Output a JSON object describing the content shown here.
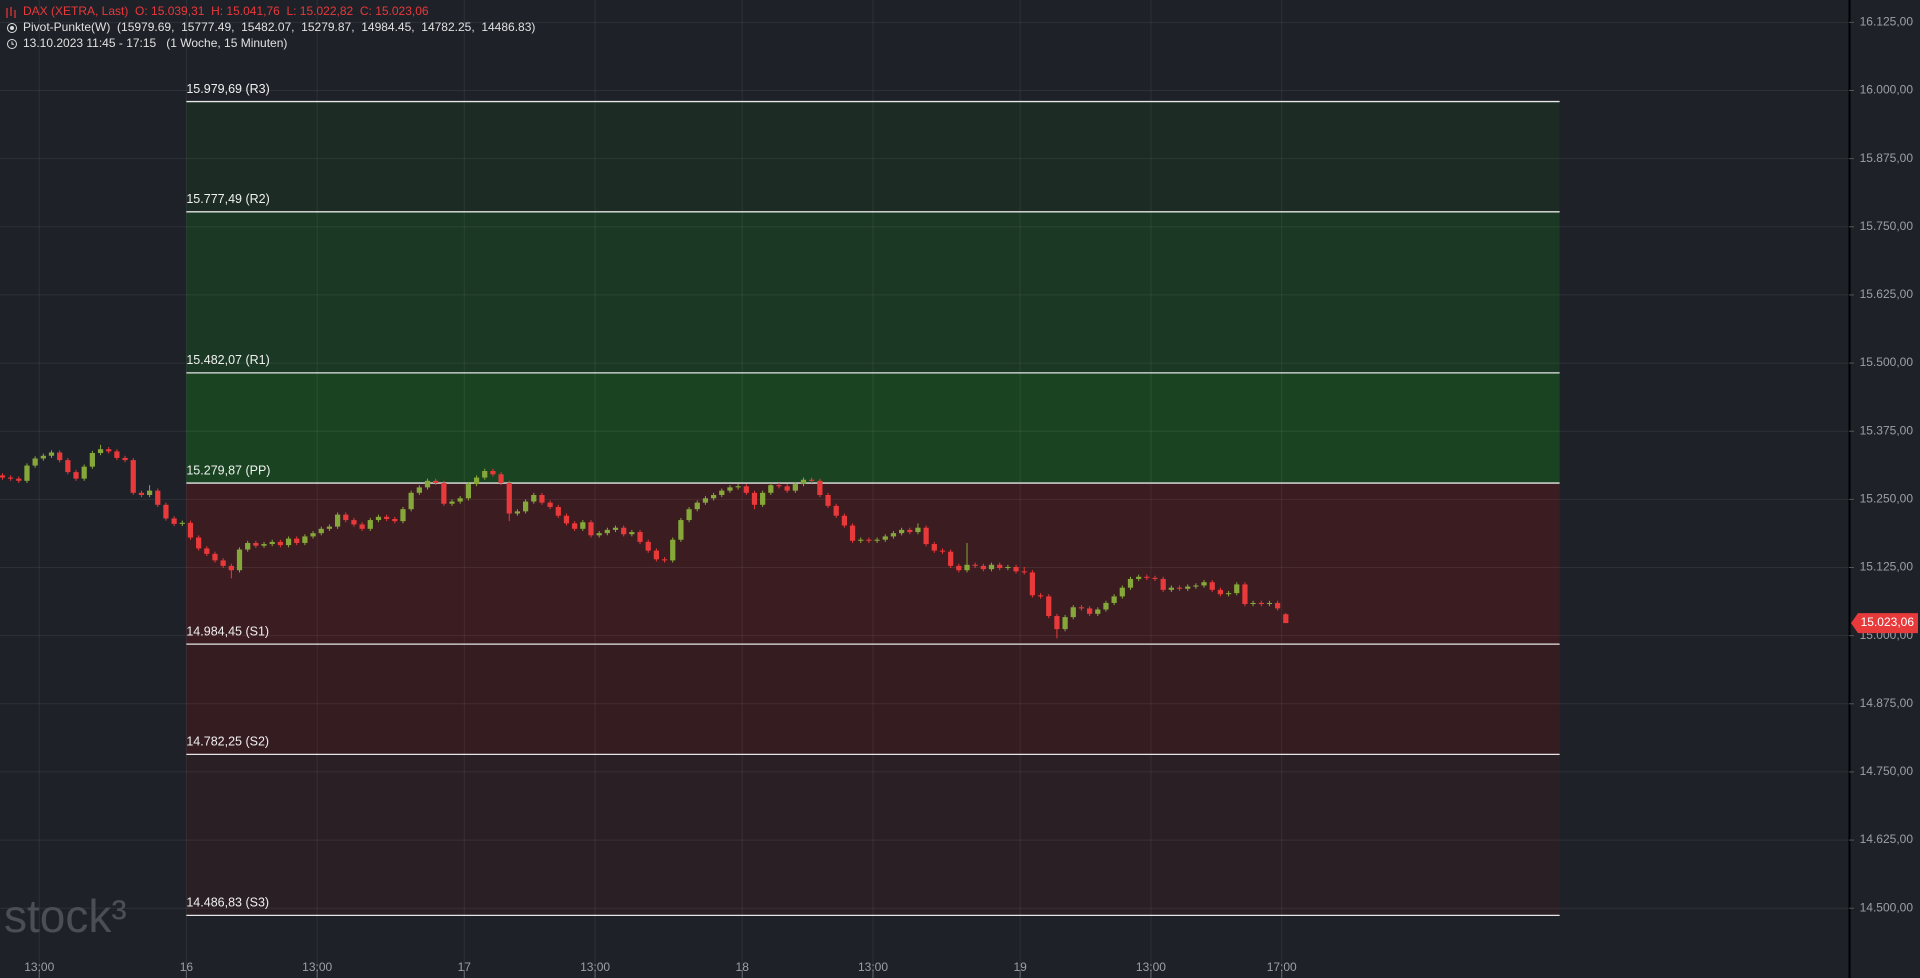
{
  "chart_data": {
    "type": "candlestick",
    "info_lines": [
      "DAX (XETRA, Last)  O: 15.039,31  H: 15.041,76  L: 15.022,82  C: 15.023,06",
      "Pivot-Punkte(W)  (15979.69,  15777.49,  15482.07,  15279.87,  14984.45,  14782.25,  14486.83)",
      "13.10.2023 11:45 - 17:15   (1 Woche, 15 Minuten)"
    ],
    "watermark": "stock³",
    "up_color": "#86a83a",
    "down_color": "#e8393b",
    "xlim": [
      -22.8,
      203.4
    ],
    "ylim": [
      14372,
      16166
    ],
    "xticks": [
      {
        "value": -18,
        "label": "13:00"
      },
      {
        "value": 0,
        "label": "16"
      },
      {
        "value": 16,
        "label": "13:00"
      },
      {
        "value": 34,
        "label": "17"
      },
      {
        "value": 50,
        "label": "13:00"
      },
      {
        "value": 68,
        "label": "18"
      },
      {
        "value": 84,
        "label": "13:00"
      },
      {
        "value": 102,
        "label": "19"
      },
      {
        "value": 118,
        "label": "13:00"
      },
      {
        "value": 134,
        "label": "17:00"
      }
    ],
    "yticks": [
      {
        "value": 14500,
        "label": "14.500,00"
      },
      {
        "value": 14625,
        "label": "14.625,00"
      },
      {
        "value": 14750,
        "label": "14.750,00"
      },
      {
        "value": 14875,
        "label": "14.875,00"
      },
      {
        "value": 15000,
        "label": "15.000,00"
      },
      {
        "value": 15125,
        "label": "15.125,00"
      },
      {
        "value": 15250,
        "label": "15.250,00"
      },
      {
        "value": 15375,
        "label": "15.375,00"
      },
      {
        "value": 15500,
        "label": "15.500,00"
      },
      {
        "value": 15625,
        "label": "15.625,00"
      },
      {
        "value": 15750,
        "label": "15.750,00"
      },
      {
        "value": 15875,
        "label": "15.875,00"
      },
      {
        "value": 16000,
        "label": "16.000,00"
      },
      {
        "value": 16125,
        "label": "16.125,00"
      }
    ],
    "grid": true,
    "pivots": {
      "x_range": [
        0,
        168
      ],
      "color": "#e6e6e6",
      "levels": [
        {
          "value": 15979.69,
          "label": "15.979,69 (R3)"
        },
        {
          "value": 15777.49,
          "label": "15.777,49 (R2)"
        },
        {
          "value": 15482.07,
          "label": "15.482,07 (R1)"
        },
        {
          "value": 15279.87,
          "label": "15.279,87 (PP)"
        },
        {
          "value": 14984.45,
          "label": "14.984,45 (S1)"
        },
        {
          "value": 14782.25,
          "label": "14.782,25 (S2)"
        },
        {
          "value": 14486.83,
          "label": "14.486,83 (S3)"
        }
      ],
      "zone_colors": [
        "#1c2b23",
        "#1a3823",
        "#1a4421",
        "#3a1c21",
        "#341c21",
        "#2a1f24"
      ]
    },
    "last_price": {
      "value": 15023.06,
      "label": "15.023,06",
      "color": "#e8393b"
    },
    "x": [
      -23,
      -22,
      -21,
      -20,
      -19,
      -18,
      -17,
      -16,
      -15,
      -14,
      -13,
      -12,
      -11,
      -10,
      -9,
      -8,
      -7,
      -6,
      -5,
      -4,
      -3,
      -2,
      -1,
      0,
      1,
      2,
      3,
      4,
      5,
      6,
      7,
      8,
      9,
      10,
      11,
      12,
      13,
      14,
      15,
      16,
      17,
      18,
      19,
      20,
      21,
      22,
      23,
      24,
      25,
      26,
      27,
      28,
      29,
      30,
      31,
      32,
      33,
      34,
      35,
      36,
      37,
      38,
      39,
      40,
      41,
      42,
      43,
      44,
      45,
      46,
      47,
      48,
      49,
      50,
      51,
      52,
      53,
      54,
      55,
      56,
      57,
      58,
      59,
      60,
      61,
      62,
      63,
      64,
      65,
      66,
      67,
      68,
      69,
      70,
      71,
      72,
      73,
      74,
      75,
      76,
      77,
      78,
      79,
      80,
      81,
      82,
      83,
      84,
      85,
      86,
      87,
      88,
      89,
      90,
      91,
      92,
      93,
      94,
      95,
      96,
      97,
      98,
      99,
      100,
      101,
      102,
      103,
      104,
      105,
      106,
      107,
      108,
      109,
      110,
      111,
      112,
      113,
      114,
      115,
      116,
      117,
      118,
      119,
      120,
      121,
      122,
      123,
      124,
      125,
      126,
      127,
      128,
      129,
      130,
      131,
      132,
      133,
      134
    ],
    "ohlc": [
      [
        15294,
        15298,
        15286,
        15290
      ],
      [
        15290,
        15294,
        15284,
        15288
      ],
      [
        15288,
        15292,
        15280,
        15284
      ],
      [
        15284,
        15316,
        15280,
        15312
      ],
      [
        15312,
        15329,
        15308,
        15325
      ],
      [
        15325,
        15334,
        15321,
        15330
      ],
      [
        15330,
        15340,
        15326,
        15336
      ],
      [
        15336,
        15340,
        15318,
        15322
      ],
      [
        15322,
        15326,
        15296,
        15300
      ],
      [
        15300,
        15304,
        15284,
        15288
      ],
      [
        15288,
        15314,
        15284,
        15310
      ],
      [
        15310,
        15339,
        15306,
        15335
      ],
      [
        15335,
        15350,
        15331,
        15342
      ],
      [
        15342,
        15346,
        15334,
        15338
      ],
      [
        15338,
        15342,
        15322,
        15326
      ],
      [
        15326,
        15330,
        15318,
        15322
      ],
      [
        15322,
        15326,
        15258,
        15262
      ],
      [
        15262,
        15266,
        15254,
        15258
      ],
      [
        15258,
        15276,
        15254,
        15266
      ],
      [
        15266,
        15270,
        15236,
        15240
      ],
      [
        15240,
        15244,
        15211,
        15215
      ],
      [
        15215,
        15219,
        15201,
        15205
      ],
      [
        15205,
        15211,
        15201,
        15207
      ],
      [
        15207,
        15211,
        15176,
        15180
      ],
      [
        15180,
        15184,
        15156,
        15160
      ],
      [
        15160,
        15164,
        15146,
        15150
      ],
      [
        15150,
        15154,
        15134,
        15138
      ],
      [
        15138,
        15142,
        15124,
        15128
      ],
      [
        15128,
        15132,
        15105,
        15120
      ],
      [
        15120,
        15162,
        15116,
        15158
      ],
      [
        15158,
        15174,
        15154,
        15170
      ],
      [
        15170,
        15174,
        15161,
        15165
      ],
      [
        15165,
        15172,
        15161,
        15168
      ],
      [
        15168,
        15176,
        15164,
        15172
      ],
      [
        15172,
        15176,
        15162,
        15166
      ],
      [
        15166,
        15182,
        15162,
        15178
      ],
      [
        15178,
        15182,
        15166,
        15170
      ],
      [
        15170,
        15186,
        15166,
        15182
      ],
      [
        15182,
        15192,
        15178,
        15188
      ],
      [
        15188,
        15200,
        15184,
        15196
      ],
      [
        15196,
        15204,
        15192,
        15200
      ],
      [
        15200,
        15226,
        15196,
        15222
      ],
      [
        15222,
        15226,
        15208,
        15212
      ],
      [
        15212,
        15216,
        15200,
        15204
      ],
      [
        15204,
        15208,
        15192,
        15196
      ],
      [
        15196,
        15216,
        15192,
        15212
      ],
      [
        15212,
        15222,
        15208,
        15218
      ],
      [
        15218,
        15222,
        15210,
        15214
      ],
      [
        15214,
        15218,
        15206,
        15210
      ],
      [
        15210,
        15236,
        15206,
        15232
      ],
      [
        15232,
        15266,
        15228,
        15262
      ],
      [
        15262,
        15276,
        15258,
        15272
      ],
      [
        15272,
        15288,
        15268,
        15284
      ],
      [
        15284,
        15288,
        15276,
        15280
      ],
      [
        15280,
        15284,
        15238,
        15242
      ],
      [
        15242,
        15250,
        15238,
        15246
      ],
      [
        15246,
        15256,
        15242,
        15252
      ],
      [
        15252,
        15282,
        15248,
        15278
      ],
      [
        15278,
        15294,
        15274,
        15290
      ],
      [
        15290,
        15306,
        15286,
        15302
      ],
      [
        15302,
        15306,
        15292,
        15296
      ],
      [
        15296,
        15300,
        15276,
        15280
      ],
      [
        15280,
        15284,
        15210,
        15224
      ],
      [
        15224,
        15232,
        15220,
        15228
      ],
      [
        15228,
        15250,
        15224,
        15246
      ],
      [
        15246,
        15262,
        15242,
        15258
      ],
      [
        15258,
        15262,
        15240,
        15244
      ],
      [
        15244,
        15248,
        15232,
        15236
      ],
      [
        15236,
        15240,
        15216,
        15220
      ],
      [
        15220,
        15224,
        15202,
        15206
      ],
      [
        15206,
        15210,
        15192,
        15196
      ],
      [
        15196,
        15212,
        15192,
        15208
      ],
      [
        15208,
        15212,
        15180,
        15184
      ],
      [
        15184,
        15192,
        15180,
        15188
      ],
      [
        15188,
        15198,
        15184,
        15194
      ],
      [
        15194,
        15202,
        15190,
        15198
      ],
      [
        15198,
        15202,
        15182,
        15186
      ],
      [
        15186,
        15194,
        15182,
        15190
      ],
      [
        15190,
        15194,
        15168,
        15172
      ],
      [
        15172,
        15176,
        15152,
        15156
      ],
      [
        15156,
        15160,
        15136,
        15140
      ],
      [
        15140,
        15144,
        15134,
        15138
      ],
      [
        15138,
        15180,
        15134,
        15176
      ],
      [
        15176,
        15216,
        15172,
        15212
      ],
      [
        15212,
        15236,
        15208,
        15232
      ],
      [
        15232,
        15248,
        15228,
        15244
      ],
      [
        15244,
        15256,
        15240,
        15252
      ],
      [
        15252,
        15262,
        15248,
        15258
      ],
      [
        15258,
        15270,
        15254,
        15266
      ],
      [
        15266,
        15276,
        15262,
        15272
      ],
      [
        15272,
        15278,
        15268,
        15274
      ],
      [
        15274,
        15278,
        15258,
        15262
      ],
      [
        15262,
        15266,
        15232,
        15240
      ],
      [
        15240,
        15266,
        15236,
        15262
      ],
      [
        15262,
        15280,
        15258,
        15276
      ],
      [
        15276,
        15280,
        15270,
        15274
      ],
      [
        15274,
        15278,
        15262,
        15266
      ],
      [
        15266,
        15282,
        15262,
        15278
      ],
      [
        15278,
        15290,
        15274,
        15286
      ],
      [
        15286,
        15290,
        15280,
        15284
      ],
      [
        15284,
        15288,
        15254,
        15258
      ],
      [
        15258,
        15262,
        15234,
        15238
      ],
      [
        15238,
        15242,
        15216,
        15220
      ],
      [
        15220,
        15224,
        15198,
        15202
      ],
      [
        15202,
        15206,
        15170,
        15174
      ],
      [
        15174,
        15180,
        15170,
        15176
      ],
      [
        15176,
        15180,
        15170,
        15174
      ],
      [
        15174,
        15180,
        15170,
        15176
      ],
      [
        15176,
        15186,
        15172,
        15182
      ],
      [
        15182,
        15192,
        15178,
        15188
      ],
      [
        15188,
        15198,
        15184,
        15194
      ],
      [
        15194,
        15198,
        15186,
        15190
      ],
      [
        15190,
        15206,
        15186,
        15198
      ],
      [
        15198,
        15202,
        15164,
        15168
      ],
      [
        15168,
        15172,
        15152,
        15156
      ],
      [
        15156,
        15160,
        15150,
        15154
      ],
      [
        15154,
        15158,
        15124,
        15128
      ],
      [
        15128,
        15132,
        15116,
        15120
      ],
      [
        15120,
        15170,
        15116,
        15130
      ],
      [
        15130,
        15134,
        15124,
        15128
      ],
      [
        15128,
        15132,
        15118,
        15122
      ],
      [
        15122,
        15134,
        15118,
        15130
      ],
      [
        15130,
        15134,
        15120,
        15124
      ],
      [
        15124,
        15130,
        15120,
        15126
      ],
      [
        15126,
        15130,
        15114,
        15118
      ],
      [
        15118,
        15126,
        15112,
        15116
      ],
      [
        15116,
        15120,
        15070,
        15074
      ],
      [
        15074,
        15078,
        15068,
        15072
      ],
      [
        15072,
        15076,
        15032,
        15036
      ],
      [
        15036,
        15040,
        14995,
        15012
      ],
      [
        15012,
        15038,
        15008,
        15034
      ],
      [
        15034,
        15056,
        15030,
        15052
      ],
      [
        15052,
        15056,
        15046,
        15050
      ],
      [
        15050,
        15054,
        15036,
        15040
      ],
      [
        15040,
        15052,
        15036,
        15048
      ],
      [
        15048,
        15064,
        15044,
        15060
      ],
      [
        15060,
        15076,
        15056,
        15072
      ],
      [
        15072,
        15092,
        15068,
        15088
      ],
      [
        15088,
        15108,
        15084,
        15104
      ],
      [
        15104,
        15112,
        15100,
        15108
      ],
      [
        15108,
        15112,
        15102,
        15106
      ],
      [
        15106,
        15110,
        15100,
        15104
      ],
      [
        15104,
        15108,
        15080,
        15084
      ],
      [
        15084,
        15092,
        15080,
        15088
      ],
      [
        15088,
        15092,
        15082,
        15086
      ],
      [
        15086,
        15094,
        15082,
        15090
      ],
      [
        15090,
        15096,
        15086,
        15092
      ],
      [
        15092,
        15102,
        15088,
        15098
      ],
      [
        15098,
        15102,
        15080,
        15084
      ],
      [
        15084,
        15088,
        15072,
        15076
      ],
      [
        15076,
        15082,
        15072,
        15078
      ],
      [
        15078,
        15098,
        15074,
        15094
      ],
      [
        15094,
        15098,
        15054,
        15058
      ],
      [
        15058,
        15064,
        15054,
        15060
      ],
      [
        15060,
        15064,
        15054,
        15058
      ],
      [
        15058,
        15064,
        15054,
        15060
      ],
      [
        15060,
        15064,
        15046,
        15050
      ],
      [
        15039.31,
        15041.76,
        15022.82,
        15023.06
      ]
    ]
  }
}
